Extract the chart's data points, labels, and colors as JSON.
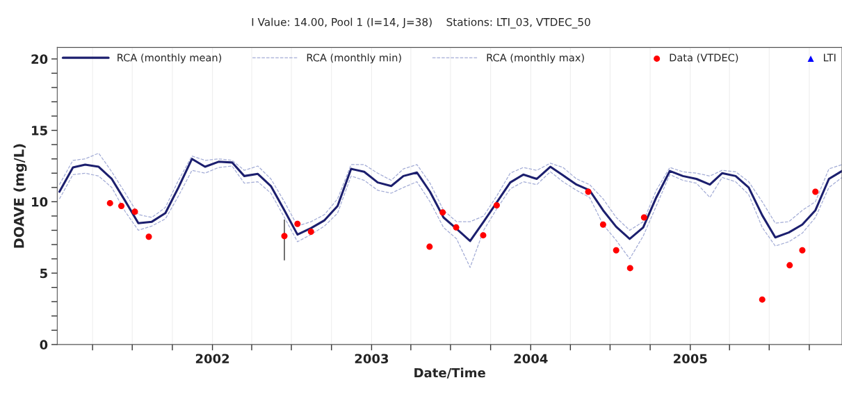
{
  "chart_data": {
    "type": "line",
    "title": "I Value: 14.00, Pool 1 (I=14, J=38)    Stations: LTI_03, VTDEC_50",
    "xlabel": "Date/Time",
    "ylabel": "DOAVE (mg/L)",
    "x": [
      "2001-01-15",
      "2001-02-15",
      "2001-03-15",
      "2001-04-15",
      "2001-05-15",
      "2001-06-15",
      "2001-07-15",
      "2001-08-15",
      "2001-09-15",
      "2001-10-15",
      "2001-11-15",
      "2001-12-15",
      "2002-01-15",
      "2002-02-15",
      "2002-03-15",
      "2002-04-15",
      "2002-05-15",
      "2002-06-15",
      "2002-07-15",
      "2002-08-15",
      "2002-09-15",
      "2002-10-15",
      "2002-11-15",
      "2002-12-15",
      "2003-01-15",
      "2003-02-15",
      "2003-03-15",
      "2003-04-15",
      "2003-05-15",
      "2003-06-15",
      "2003-07-15",
      "2003-08-15",
      "2003-09-15",
      "2003-10-15",
      "2003-11-15",
      "2003-12-15",
      "2004-01-15",
      "2004-02-15",
      "2004-03-15",
      "2004-04-15",
      "2004-05-15",
      "2004-06-15",
      "2004-07-15",
      "2004-08-15",
      "2004-09-15",
      "2004-10-15",
      "2004-11-15",
      "2004-12-15",
      "2005-01-15",
      "2005-02-15",
      "2005-03-15",
      "2005-04-15",
      "2005-05-15",
      "2005-06-15",
      "2005-07-15",
      "2005-08-15",
      "2005-09-15",
      "2005-10-15",
      "2005-11-15",
      "2005-12-15"
    ],
    "series": [
      {
        "name": "RCA (monthly mean)",
        "color": "#1c1f6e",
        "line_style": "solid",
        "marker": "none",
        "values": [
          10.7,
          12.4,
          12.6,
          12.45,
          11.6,
          10.05,
          8.5,
          8.6,
          9.2,
          11.0,
          13.0,
          12.45,
          12.8,
          12.75,
          11.8,
          11.95,
          11.1,
          9.4,
          7.7,
          8.15,
          8.7,
          9.7,
          12.3,
          12.1,
          11.35,
          11.1,
          11.8,
          12.05,
          10.7,
          8.9,
          8.1,
          7.25,
          8.6,
          9.95,
          11.35,
          11.9,
          11.6,
          12.45,
          11.85,
          11.2,
          10.8,
          9.4,
          8.25,
          7.4,
          8.2,
          10.3,
          12.15,
          11.8,
          11.6,
          11.2,
          12.0,
          11.8,
          11.0,
          9.05,
          7.5,
          7.85,
          8.4,
          9.4,
          11.6,
          12.15
        ]
      },
      {
        "name": "RCA (monthly min)",
        "color": "#a3acd6",
        "line_style": "dashed",
        "marker": "none",
        "values": [
          10.2,
          11.9,
          12.0,
          11.8,
          11.0,
          9.3,
          8.0,
          8.3,
          8.8,
          10.4,
          12.2,
          12.0,
          12.4,
          12.5,
          11.3,
          11.4,
          10.6,
          8.9,
          7.2,
          7.7,
          8.3,
          9.2,
          11.8,
          11.5,
          10.8,
          10.6,
          11.0,
          11.4,
          10.0,
          8.2,
          7.4,
          5.4,
          8.0,
          9.5,
          10.9,
          11.4,
          11.2,
          12.1,
          11.4,
          10.8,
          10.3,
          8.4,
          7.3,
          6.0,
          7.6,
          9.7,
          11.9,
          11.5,
          11.3,
          10.3,
          11.7,
          11.4,
          10.5,
          8.2,
          6.9,
          7.2,
          7.8,
          8.9,
          11.0,
          11.7
        ]
      },
      {
        "name": "RCA (monthly max)",
        "color": "#a3acd6",
        "line_style": "dashed",
        "marker": "none",
        "values": [
          11.2,
          12.9,
          13.0,
          13.4,
          12.1,
          10.6,
          9.1,
          8.9,
          9.6,
          11.5,
          13.2,
          12.9,
          13.0,
          12.9,
          12.2,
          12.5,
          11.6,
          10.0,
          8.3,
          8.6,
          9.1,
          10.2,
          12.6,
          12.6,
          12.0,
          11.5,
          12.3,
          12.6,
          11.3,
          9.4,
          8.6,
          8.6,
          9.0,
          10.4,
          12.0,
          12.4,
          12.2,
          12.7,
          12.4,
          11.6,
          11.2,
          10.2,
          8.9,
          8.0,
          8.6,
          10.8,
          12.4,
          12.1,
          12.0,
          11.8,
          12.2,
          12.1,
          11.4,
          10.0,
          8.5,
          8.6,
          9.4,
          10.0,
          12.3,
          12.6
        ]
      },
      {
        "name": "Data (VTDEC)",
        "type": "scatter",
        "color": "#ff0000",
        "marker": "circle",
        "x": [
          "2001-05-11",
          "2001-06-06",
          "2001-07-07",
          "2001-08-08",
          "2002-06-15",
          "2002-07-15",
          "2002-08-15",
          "2003-05-14",
          "2003-06-13",
          "2003-07-14",
          "2003-09-14",
          "2003-10-15",
          "2004-05-12",
          "2004-06-15",
          "2004-07-15",
          "2004-08-16",
          "2004-09-17",
          "2005-06-15",
          "2005-08-17",
          "2005-09-15",
          "2005-10-15"
        ],
        "values": [
          9.9,
          9.7,
          9.3,
          7.55,
          7.6,
          8.45,
          7.9,
          6.85,
          9.25,
          8.2,
          7.65,
          9.75,
          10.7,
          8.4,
          6.6,
          5.35,
          8.9,
          3.15,
          5.55,
          6.6,
          10.7
        ],
        "errors": [
          null,
          null,
          null,
          null,
          [
            5.9,
            8.75
          ],
          null,
          null,
          null,
          null,
          null,
          null,
          null,
          null,
          null,
          null,
          null,
          null,
          null,
          null,
          null,
          null
        ]
      },
      {
        "name": "LTI",
        "type": "scatter",
        "color": "#0000ff",
        "marker": "triangle",
        "values": [
          null,
          null,
          null,
          null,
          null,
          null,
          null,
          null,
          null,
          null,
          null,
          null,
          null,
          null,
          null,
          null,
          null,
          null,
          null,
          null,
          null,
          null,
          null,
          null,
          null,
          null,
          null,
          null,
          null,
          null,
          null,
          null,
          null,
          null,
          null,
          null,
          null,
          null,
          null,
          null,
          null,
          null,
          null,
          null,
          null,
          null,
          null,
          null,
          null,
          null,
          null,
          null,
          null,
          null,
          null,
          null,
          null,
          null,
          null,
          null
        ]
      }
    ],
    "xlim": [
      "2001-01-10",
      "2005-12-15"
    ],
    "xticks": [
      {
        "value": "2001-04-01",
        "label": null
      },
      {
        "value": "2001-07-01",
        "label": null
      },
      {
        "value": "2001-10-01",
        "label": null
      },
      {
        "value": "2002-01-01",
        "label": "2002"
      },
      {
        "value": "2002-04-01",
        "label": null
      },
      {
        "value": "2002-07-01",
        "label": null
      },
      {
        "value": "2002-10-01",
        "label": null
      },
      {
        "value": "2003-01-01",
        "label": "2003"
      },
      {
        "value": "2003-04-01",
        "label": null
      },
      {
        "value": "2003-07-01",
        "label": null
      },
      {
        "value": "2003-10-01",
        "label": null
      },
      {
        "value": "2004-01-01",
        "label": "2004"
      },
      {
        "value": "2004-04-01",
        "label": null
      },
      {
        "value": "2004-07-01",
        "label": null
      },
      {
        "value": "2004-10-01",
        "label": null
      },
      {
        "value": "2005-01-01",
        "label": "2005"
      },
      {
        "value": "2005-04-01",
        "label": null
      },
      {
        "value": "2005-07-01",
        "label": null
      },
      {
        "value": "2005-10-01",
        "label": null
      }
    ],
    "ylim": [
      0,
      20.8
    ],
    "yticks": [
      0,
      {
        "value": 1,
        "label": null
      },
      {
        "value": 2,
        "label": null
      },
      {
        "value": 3,
        "label": null
      },
      {
        "value": 4,
        "label": null
      },
      5,
      {
        "value": 6,
        "label": null
      },
      {
        "value": 7,
        "label": null
      },
      {
        "value": 8,
        "label": null
      },
      {
        "value": 9,
        "label": null
      },
      10,
      {
        "value": 11,
        "label": null
      },
      {
        "value": 12,
        "label": null
      },
      {
        "value": 13,
        "label": null
      },
      {
        "value": 14,
        "label": null
      },
      15,
      {
        "value": 16,
        "label": null
      },
      {
        "value": 17,
        "label": null
      },
      {
        "value": 18,
        "label": null
      },
      {
        "value": 19,
        "label": null
      },
      20
    ],
    "grid": "x",
    "legend": "top"
  }
}
